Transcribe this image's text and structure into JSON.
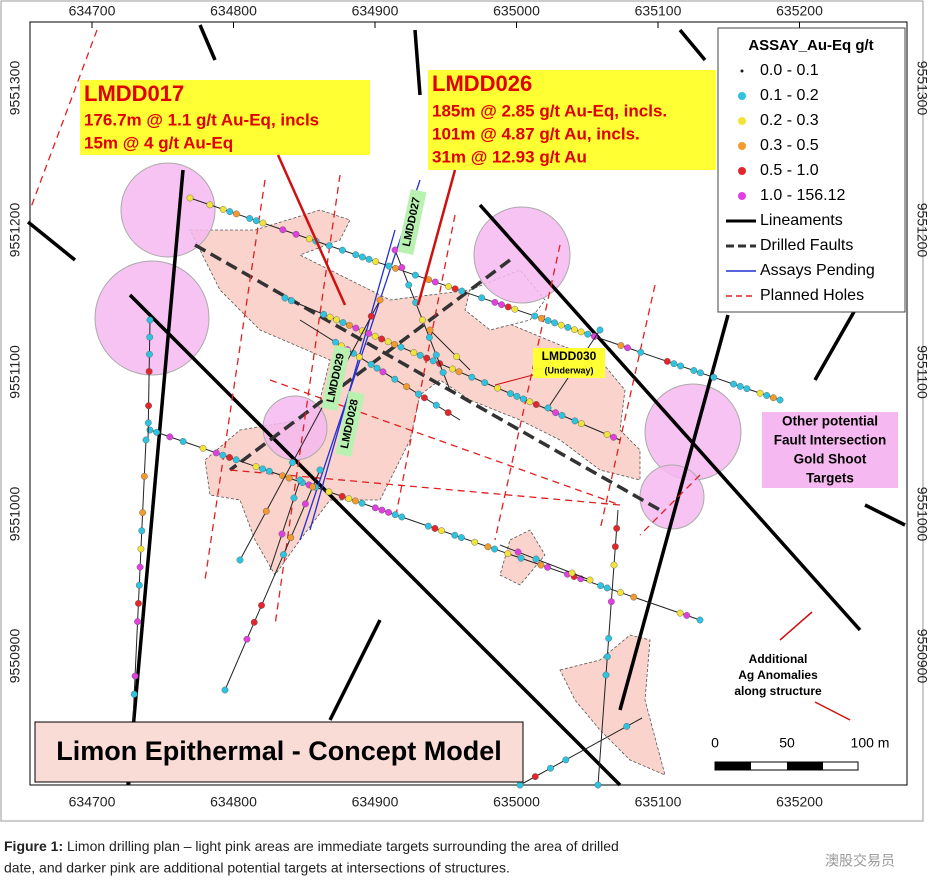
{
  "map": {
    "eastings": [
      634700,
      634800,
      634900,
      635000,
      635100,
      635200
    ],
    "northings": [
      9551300,
      9551200,
      9551100,
      9551000,
      9550900
    ],
    "legend": {
      "title": "ASSAY_Au-Eq g/t",
      "items": [
        {
          "label": "0.0 - 0.1",
          "color": "#1a1a1a"
        },
        {
          "label": "0.1 - 0.2",
          "color": "#2ec4e0"
        },
        {
          "label": "0.2 - 0.3",
          "color": "#f2e33a"
        },
        {
          "label": "0.3 - 0.5",
          "color": "#f29a2e"
        },
        {
          "label": "0.5 - 1.0",
          "color": "#e3262b"
        },
        {
          "label": "1.0 - 156.12",
          "color": "#e040e0"
        },
        {
          "label": "Lineaments"
        },
        {
          "label": "Drilled Faults"
        },
        {
          "label": "Assays Pending"
        },
        {
          "label": "Planned Holes"
        }
      ]
    },
    "callouts": [
      {
        "title": "LMDD017",
        "lines": [
          "176.7m @ 1.1 g/t Au-Eq, incls",
          "15m @ 4 g/t Au-Eq"
        ]
      },
      {
        "title": "LMDD026",
        "lines": [
          "185m @ 2.85 g/t Au-Eq, incls.",
          "101m @ 4.87 g/t Au, incls.",
          "31m @ 12.93 g/t Au"
        ]
      }
    ],
    "hole_labels": [
      "LMDD027",
      "LMDD029",
      "LMDD028"
    ],
    "underway": {
      "name": "LMDD030",
      "status": "(Underway)"
    },
    "targets_note": [
      "Other potential",
      "Fault Intersection",
      "Gold Shoot",
      "Targets"
    ],
    "ag_note": [
      "Additional",
      "Ag Anomalies",
      "along structure"
    ],
    "scale_labels": [
      "0",
      "50",
      "100 m"
    ],
    "title": "Limon Epithermal - Concept Model"
  },
  "caption": {
    "figure": "Figure 1:",
    "line1": " Limon drilling plan – light pink areas are immediate targets surrounding the area of drilled",
    "line2": "date, and darker pink are additional potential targets at intersections of structures."
  },
  "watermark": "澳股交易员"
}
